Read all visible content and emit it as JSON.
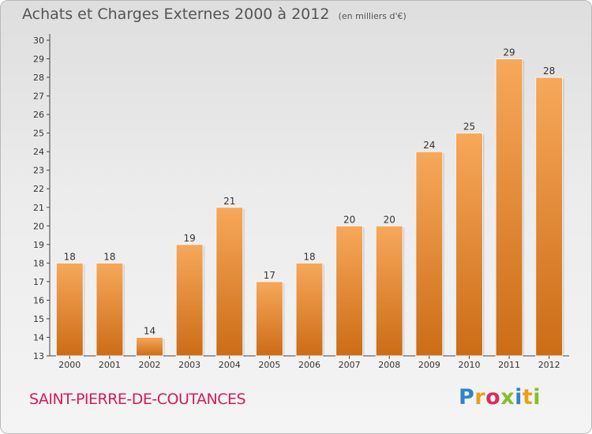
{
  "title": {
    "main": "Achats et Charges Externes 2000 à 2012",
    "unit": "(en milliers d'€)"
  },
  "commune": "SAINT-PIERRE-DE-COUTANCES",
  "brand": {
    "letters": [
      "P",
      "r",
      "o",
      "x",
      "i",
      "t",
      "i"
    ]
  },
  "colors": {
    "bar_top": "#f7a85a",
    "bar_bottom": "#cc6c16",
    "commune_text": "#cf1c5f",
    "axis": "#444444"
  },
  "chart_data": {
    "type": "bar",
    "categories": [
      "2000",
      "2001",
      "2002",
      "2003",
      "2004",
      "2005",
      "2006",
      "2007",
      "2008",
      "2009",
      "2010",
      "2011",
      "2012"
    ],
    "values": [
      18,
      18,
      14,
      19,
      21,
      17,
      18,
      20,
      20,
      24,
      25,
      29,
      28
    ],
    "data_labels": [
      "18",
      "18",
      "14",
      "19",
      "21",
      "17",
      "18",
      "20",
      "20",
      "24",
      "25",
      "29",
      "28"
    ],
    "title": "Achats et Charges Externes 2000 à 2012",
    "ylim": [
      13,
      30
    ],
    "yticks": [
      13,
      14,
      15,
      16,
      17,
      18,
      19,
      20,
      21,
      22,
      23,
      24,
      25,
      26,
      27,
      28,
      29,
      30
    ],
    "grid": false,
    "legend": "none"
  }
}
